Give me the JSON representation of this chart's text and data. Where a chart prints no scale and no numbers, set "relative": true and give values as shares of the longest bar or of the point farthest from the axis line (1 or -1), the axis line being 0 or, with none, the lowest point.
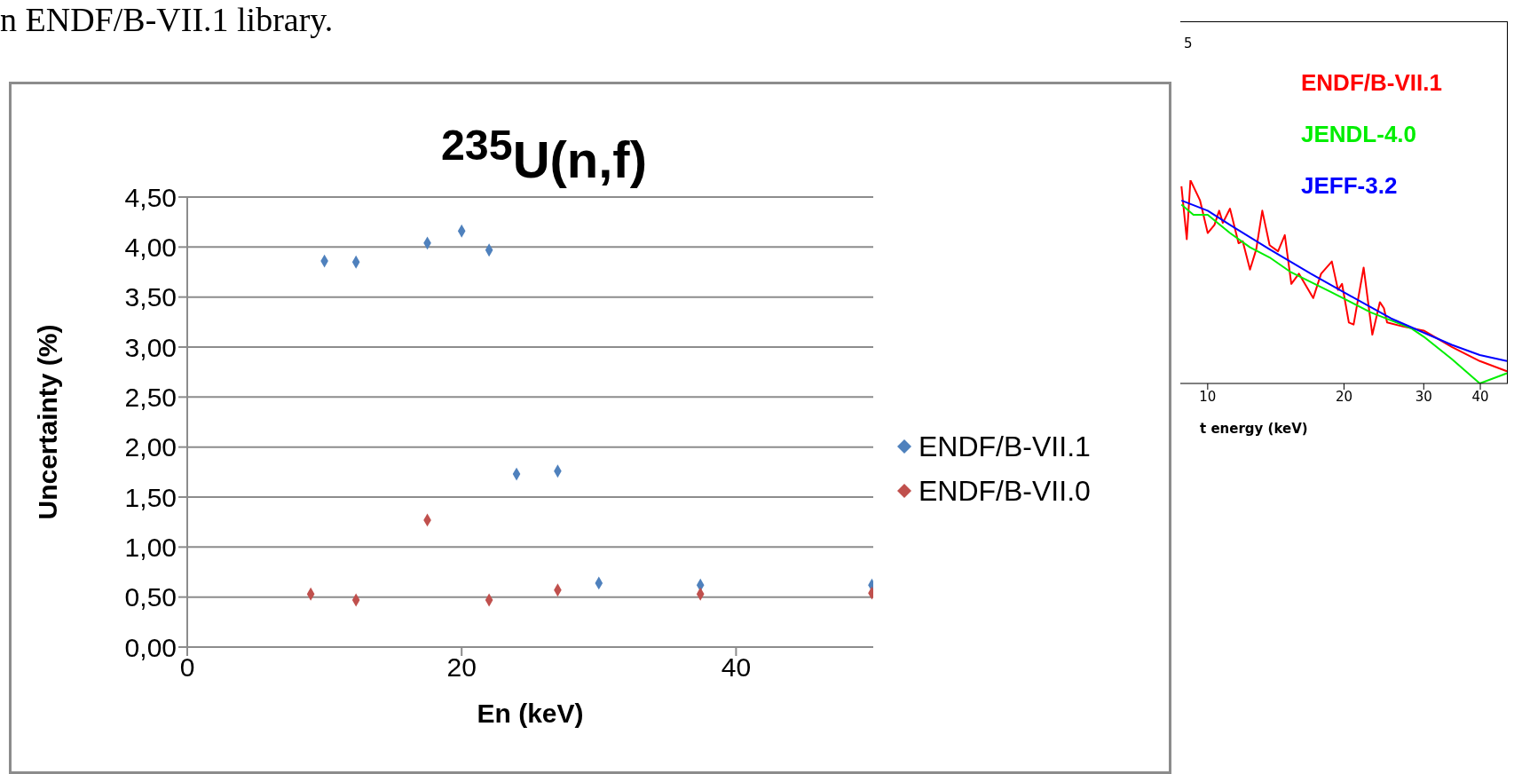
{
  "chart_data": [
    {
      "type": "scatter",
      "title": "$^{235}$U(n,f)",
      "xlabel": "En (keV)",
      "ylabel": "Uncertainty (%)",
      "annotations": [
        "n ENDF/B-VII.1 library."
      ],
      "xlim": [
        0,
        50
      ],
      "xticks": [
        0,
        20,
        40
      ],
      "ylim": [
        0,
        4.5
      ],
      "yticks": [
        {
          "value": 0,
          "label": "0,00"
        },
        {
          "value": 0.5,
          "label": "0,50"
        },
        {
          "value": 1,
          "label": "1,00"
        },
        {
          "value": 1.5,
          "label": "1,50"
        },
        {
          "value": 2,
          "label": "2,00"
        },
        {
          "value": 2.5,
          "label": "2,50"
        },
        {
          "value": 3,
          "label": "3,00"
        },
        {
          "value": 3.5,
          "label": "3,50"
        },
        {
          "value": 4,
          "label": "4,00"
        },
        {
          "value": 4.5,
          "label": "4,50"
        }
      ],
      "grid": "y",
      "legend": "right",
      "marker": "diamond",
      "series": [
        {
          "name": "ENDF/B-VII.1",
          "color": "#4f81bd",
          "x": [
            10.0,
            12.3,
            17.5,
            20.0,
            22.0,
            24.0,
            27.0,
            30.0,
            37.4,
            49.9
          ],
          "values": [
            3.86,
            3.85,
            4.04,
            4.16,
            3.97,
            1.73,
            1.76,
            0.64,
            0.62,
            0.62
          ]
        },
        {
          "name": "ENDF/B-VII.0",
          "color": "#c0504d",
          "x": [
            9.0,
            12.3,
            17.5,
            22.0,
            27.0,
            37.4,
            49.9
          ],
          "values": [
            0.53,
            0.47,
            1.27,
            0.47,
            0.57,
            0.53,
            0.54
          ]
        }
      ]
    },
    {
      "type": "line",
      "xlabel": "t energy (keV)",
      "relative": true,
      "log": "x",
      "xlim": [
        8.7,
        46
      ],
      "xticks": [
        10,
        20,
        30,
        40
      ],
      "legend": "top right",
      "annotations": [
        "5"
      ],
      "series": [
        {
          "name": "ENDF/B-VII.1",
          "color": "#ff0000",
          "x": [
            8.75,
            8.99,
            9.16,
            9.62,
            10,
            10.35,
            10.6,
            10.8,
            11.2,
            11.7,
            11.95,
            12.4,
            12.8,
            13.2,
            13.7,
            14.3,
            14.8,
            15.3,
            15.9,
            17.1,
            17.8,
            18.8,
            19.4,
            19.8,
            20.5,
            21.0,
            22.1,
            23.1,
            24.0,
            24.5,
            24.9,
            27.0,
            30.0,
            34.6,
            39.9,
            45.8
          ],
          "values": [
            0.97,
            0.71,
            1,
            0.9,
            0.74,
            0.78,
            0.85,
            0.79,
            0.86,
            0.69,
            0.7,
            0.56,
            0.66,
            0.85,
            0.68,
            0.65,
            0.73,
            0.49,
            0.54,
            0.42,
            0.54,
            0.6,
            0.46,
            0.49,
            0.3,
            0.29,
            0.57,
            0.24,
            0.4,
            0.37,
            0.3,
            0.28,
            0.26,
            0.18,
            0.11,
            0.06
          ]
        },
        {
          "name": "JENDL-4.0",
          "color": "#00ee00",
          "x": [
            8.75,
            9.3,
            10,
            11.2,
            12.4,
            13.7,
            15.2,
            18.7,
            22.9,
            28.2,
            30.0,
            34.6,
            39.9,
            45.8
          ],
          "values": [
            0.88,
            0.83,
            0.83,
            0.74,
            0.67,
            0.62,
            0.55,
            0.45,
            0.35,
            0.27,
            0.23,
            0.12,
            0,
            0.05
          ]
        },
        {
          "name": "JEFF-3.2",
          "color": "#0000ff",
          "x": [
            8.75,
            10,
            11.2,
            13.7,
            16.9,
            20.7,
            25.4,
            30.0,
            34.6,
            39.9,
            45.8
          ],
          "values": [
            0.9,
            0.85,
            0.78,
            0.66,
            0.54,
            0.43,
            0.32,
            0.25,
            0.19,
            0.14,
            0.11
          ]
        }
      ]
    }
  ]
}
